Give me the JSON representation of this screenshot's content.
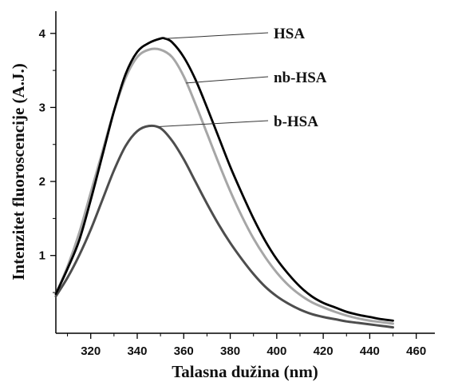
{
  "chart_data": {
    "type": "line",
    "title": "",
    "xlabel": "Talasna dužina (nm)",
    "ylabel": "Intenzitet fluoroscencije (A.J.)",
    "xlim": [
      305,
      468
    ],
    "ylim": [
      -0.05,
      4.3
    ],
    "x_ticks": [
      320,
      340,
      360,
      380,
      400,
      420,
      440,
      460
    ],
    "y_ticks": [
      1,
      2,
      3,
      4
    ],
    "grid": false,
    "legend": "annotations with leader lines, right of peaks",
    "series": [
      {
        "name": "HSA",
        "color": "#000000",
        "x": [
          305,
          310,
          315,
          320,
          325,
          330,
          335,
          340,
          345,
          350,
          352,
          355,
          360,
          365,
          370,
          375,
          380,
          385,
          390,
          395,
          400,
          405,
          410,
          415,
          420,
          425,
          430,
          435,
          440,
          445,
          450
        ],
        "y": [
          0.48,
          0.82,
          1.2,
          1.75,
          2.35,
          2.95,
          3.45,
          3.75,
          3.87,
          3.93,
          3.93,
          3.88,
          3.68,
          3.38,
          3.0,
          2.6,
          2.2,
          1.84,
          1.5,
          1.2,
          0.95,
          0.75,
          0.58,
          0.45,
          0.36,
          0.3,
          0.24,
          0.2,
          0.17,
          0.14,
          0.12
        ]
      },
      {
        "name": "nb-HSA",
        "color": "#a6a6a6",
        "x": [
          305,
          310,
          315,
          320,
          325,
          330,
          335,
          340,
          345,
          350,
          355,
          360,
          365,
          370,
          375,
          380,
          385,
          390,
          395,
          400,
          405,
          410,
          415,
          420,
          425,
          430,
          435,
          440,
          445,
          450
        ],
        "y": [
          0.48,
          0.85,
          1.3,
          1.85,
          2.4,
          2.95,
          3.4,
          3.68,
          3.78,
          3.78,
          3.68,
          3.42,
          3.05,
          2.65,
          2.25,
          1.87,
          1.53,
          1.23,
          0.98,
          0.77,
          0.6,
          0.47,
          0.37,
          0.3,
          0.24,
          0.19,
          0.15,
          0.12,
          0.1,
          0.08
        ]
      },
      {
        "name": "b-HSA",
        "color": "#4d4d4d",
        "x": [
          305,
          310,
          315,
          320,
          325,
          330,
          335,
          340,
          345,
          350,
          355,
          360,
          365,
          370,
          375,
          380,
          385,
          390,
          395,
          400,
          405,
          410,
          415,
          420,
          425,
          430,
          435,
          440,
          445,
          450
        ],
        "y": [
          0.45,
          0.7,
          1.0,
          1.35,
          1.75,
          2.15,
          2.48,
          2.68,
          2.75,
          2.72,
          2.55,
          2.3,
          2.0,
          1.7,
          1.42,
          1.17,
          0.95,
          0.75,
          0.58,
          0.45,
          0.35,
          0.27,
          0.21,
          0.17,
          0.14,
          0.11,
          0.09,
          0.07,
          0.05,
          0.03
        ]
      }
    ],
    "annotations": [
      {
        "text": "HSA",
        "series": "HSA",
        "point": [
          352,
          3.93
        ]
      },
      {
        "text": "nb-HSA",
        "series": "nb-HSA",
        "point": [
          361,
          3.33
        ]
      },
      {
        "text": "b-HSA",
        "series": "b-HSA",
        "point": [
          349,
          2.74
        ]
      }
    ]
  }
}
